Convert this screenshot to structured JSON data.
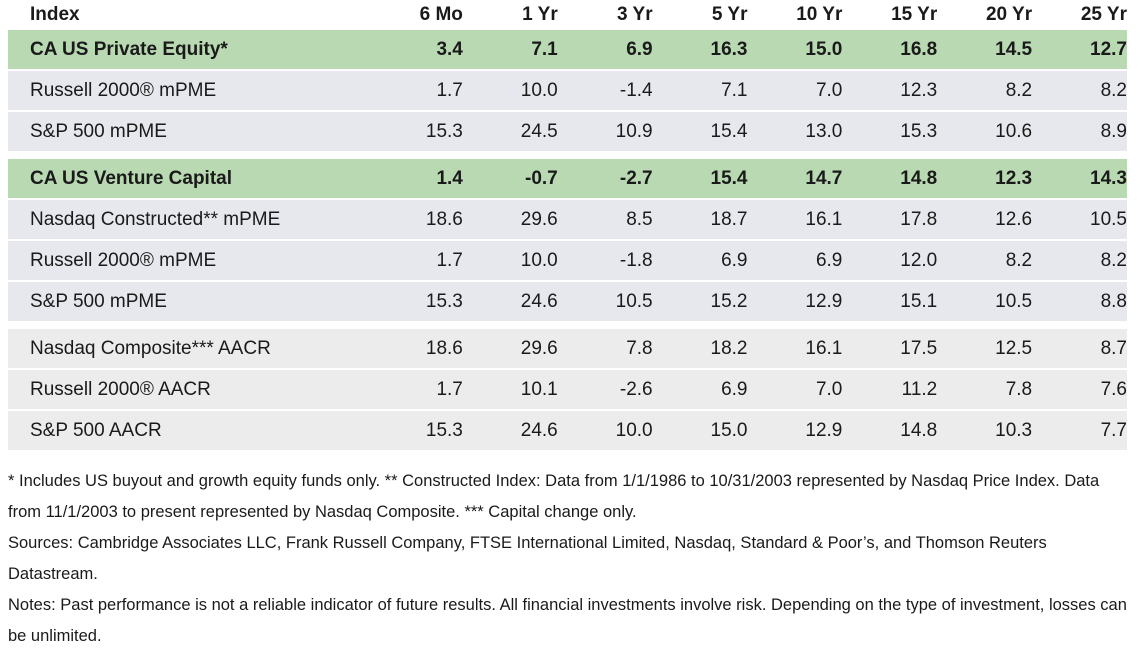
{
  "chart_data": {
    "type": "table",
    "columns": [
      "Index",
      "6 Mo",
      "1 Yr",
      "3 Yr",
      "5 Yr",
      "10 Yr",
      "15 Yr",
      "20 Yr",
      "25 Yr"
    ],
    "rows": [
      {
        "label": "CA US Private Equity*",
        "values": [
          "3.4",
          "7.1",
          "6.9",
          "16.3",
          "15.0",
          "16.8",
          "14.5",
          "12.7"
        ],
        "style": "highlight"
      },
      {
        "label": "Russell 2000® mPME",
        "values": [
          "1.7",
          "10.0",
          "-1.4",
          "7.1",
          "7.0",
          "12.3",
          "8.2",
          "8.2"
        ],
        "style": "pme"
      },
      {
        "label": "S&P 500 mPME",
        "values": [
          "15.3",
          "24.5",
          "10.9",
          "15.4",
          "13.0",
          "15.3",
          "10.6",
          "8.9"
        ],
        "style": "pme"
      },
      {
        "label": "CA US Venture Capital",
        "values": [
          "1.4",
          "-0.7",
          "-2.7",
          "15.4",
          "14.7",
          "14.8",
          "12.3",
          "14.3"
        ],
        "style": "highlight"
      },
      {
        "label": "Nasdaq Constructed** mPME",
        "values": [
          "18.6",
          "29.6",
          "8.5",
          "18.7",
          "16.1",
          "17.8",
          "12.6",
          "10.5"
        ],
        "style": "pme"
      },
      {
        "label": "Russell 2000® mPME",
        "values": [
          "1.7",
          "10.0",
          "-1.8",
          "6.9",
          "6.9",
          "12.0",
          "8.2",
          "8.2"
        ],
        "style": "pme"
      },
      {
        "label": "S&P 500 mPME",
        "values": [
          "15.3",
          "24.6",
          "10.5",
          "15.2",
          "12.9",
          "15.1",
          "10.5",
          "8.8"
        ],
        "style": "pme"
      },
      {
        "label": "Nasdaq Composite*** AACR",
        "values": [
          "18.6",
          "29.6",
          "7.8",
          "18.2",
          "16.1",
          "17.5",
          "12.5",
          "8.7"
        ],
        "style": "aacr"
      },
      {
        "label": "Russell 2000® AACR",
        "values": [
          "1.7",
          "10.1",
          "-2.6",
          "6.9",
          "7.0",
          "11.2",
          "7.8",
          "7.6"
        ],
        "style": "aacr"
      },
      {
        "label": "S&P 500 AACR",
        "values": [
          "15.3",
          "24.6",
          "10.0",
          "15.0",
          "12.9",
          "14.8",
          "10.3",
          "7.7"
        ],
        "style": "aacr"
      }
    ],
    "colors": {
      "highlight": "#b9d9b2",
      "pme": "#e6e8ee",
      "aacr": "#ececec"
    }
  },
  "notes": {
    "footnote": "* Includes US buyout and growth equity funds only. ** Constructed Index: Data from 1/1/1986 to 10/31/2003 represented by Nasdaq Price Index. Data from 11/1/2003 to present represented by Nasdaq Composite. *** Capital change only.",
    "sources": "Sources: Cambridge Associates LLC, Frank Russell Company, FTSE International Limited, Nasdaq, Standard & Poor’s, and Thomson Reuters Datastream.",
    "disclaimer": "Notes: Past performance is not a reliable indicator of future results. All financial investments involve risk. Depending on the type of investment, losses can be unlimited."
  }
}
